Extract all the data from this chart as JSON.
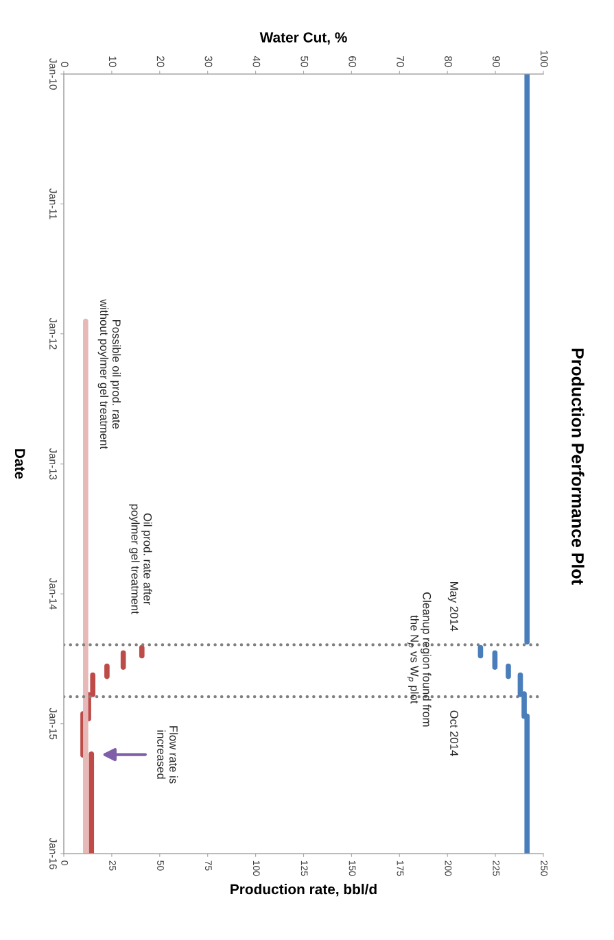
{
  "chart_data": {
    "type": "line",
    "orientation": "horizontal",
    "title": "Production Performance Plot",
    "xlabel": "Production rate, bbl/d",
    "x2label": "Water Cut, %",
    "ylabel": "Date",
    "ylim": [
      "2016-01-01",
      "2010-01-01"
    ],
    "yticks": [
      {
        "value": "2010-01-01",
        "label": "Jan-10"
      },
      {
        "value": "2011-01-01",
        "label": "Jan-11"
      },
      {
        "value": "2012-01-01",
        "label": "Jan-12"
      },
      {
        "value": "2013-01-01",
        "label": "Jan-13"
      },
      {
        "value": "2014-01-01",
        "label": "Jan-14"
      },
      {
        "value": "2015-01-01",
        "label": "Jan-15"
      },
      {
        "value": "2016-01-01",
        "label": "Jan-16"
      }
    ],
    "xlim": [
      0,
      250
    ],
    "xticks": [
      0,
      25,
      50,
      75,
      100,
      125,
      150,
      175,
      200,
      225,
      250
    ],
    "x2lim": [
      0,
      100
    ],
    "x2ticks": [
      0,
      10,
      20,
      30,
      40,
      50,
      60,
      70,
      80,
      90,
      100
    ],
    "grid": false,
    "line_style": "solid",
    "marker": "none",
    "series": [
      {
        "color": "#4a7ebb",
        "axis": "x2",
        "x": [
          "2010-01-01",
          "2014-05-16",
          null,
          "2014-06-01",
          "2014-06-24",
          null,
          "2014-06-16",
          "2014-07-26",
          null,
          "2014-07-23",
          "2014-08-21",
          null,
          "2014-08-17",
          "2014-10-11",
          null,
          "2014-10-09",
          "2014-12-11",
          null,
          "2014-12-11",
          "2016-01-01"
        ],
        "values": [
          96.6,
          96.6,
          null,
          86.9,
          86.9,
          null,
          89.9,
          89.9,
          null,
          92.7,
          92.7,
          null,
          95.2,
          95.2,
          null,
          96.0,
          96.0,
          null,
          96.6,
          96.6
        ]
      },
      {
        "color": "#be4b48",
        "x": [
          "2014-06-01",
          "2014-06-24",
          null,
          "2014-06-16",
          "2014-07-26",
          null,
          "2014-07-23",
          "2014-08-21",
          null,
          "2014-08-17",
          "2014-10-11",
          null,
          "2014-10-11",
          "2014-12-18",
          null,
          "2014-12-04",
          "2015-03-30",
          null,
          "2015-03-27",
          "2016-01-01"
        ],
        "values": [
          40.7,
          40.7,
          null,
          31,
          31,
          null,
          22.5,
          22.5,
          null,
          15.1,
          15.1,
          null,
          12.9,
          12.9,
          null,
          10,
          10,
          null,
          14.4,
          14.4
        ]
      },
      {
        "color": "#e6b9b8",
        "x": [
          "2011-11-27",
          "2016-01-01"
        ],
        "values": [
          11.4,
          11.4
        ]
      }
    ],
    "ref_lines": [
      {
        "axis": "y",
        "value": "2014-05-24",
        "label": "May 2014",
        "color": "#808080",
        "line_style": "dotted"
      },
      {
        "axis": "y",
        "value": "2014-10-17",
        "label": "Oct 2014",
        "color": "#808080",
        "line_style": "dotted"
      }
    ],
    "annotations": [
      "Possible oil prod. rate\nwithout poylmer gel treatment",
      "Oil prod. rate after\npoylmer gel treatment",
      "Cleanup region found from\nthe N$_{p}$ vs W$_{p}$ plot",
      "Flow rate is\nincreased"
    ]
  }
}
